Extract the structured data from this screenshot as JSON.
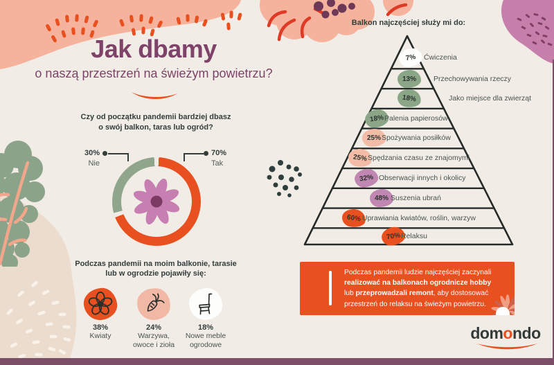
{
  "colors": {
    "bg": "#f1ece6",
    "orange": "#e8501f",
    "green": "#90a68c",
    "salmon": "#f5b29c",
    "mauve": "#c77fb2",
    "plum": "#7d4368",
    "dark": "#333e3b",
    "footer": "#7d4e68"
  },
  "header": {
    "title": "Jak dbamy",
    "subtitle": "o naszą przestrzeń na świeżym powietrzu?"
  },
  "donut_section": {
    "question_line1": "Czy od początku pandemii bardziej dbasz",
    "question_line2": "o swój balkon, taras lub ogród?",
    "left_value": "30%",
    "left_label": "Nie",
    "right_value": "70%",
    "right_label": "Tak"
  },
  "pyramid_section": {
    "heading": "Balkon najczęściej służy mi do:"
  },
  "items_section": {
    "heading_line1": "Podczas pandemii na moim balkonie, tarasie",
    "heading_line2": "lub w ogrodzie pojawiły się:",
    "items": [
      {
        "value": "38%",
        "label_line1": "Kwiaty",
        "label_line2": "",
        "icon": "flower-icon"
      },
      {
        "value": "24%",
        "label_line1": "Warzywa,",
        "label_line2": "owoce i zioła",
        "icon": "carrot-icon"
      },
      {
        "value": "18%",
        "label_line1": "Nowe meble",
        "label_line2": "ogrodowe",
        "icon": "chair-icon"
      }
    ]
  },
  "callout": {
    "lines": [
      [
        {
          "t": "Podczas pandemii ludzie najczęściej zaczynali",
          "b": false
        }
      ],
      [
        {
          "t": "realizować na balkonach ogrodnicze hobby",
          "b": true
        }
      ],
      [
        {
          "t": "lub ",
          "b": false
        },
        {
          "t": "przeprowadzali remont",
          "b": true
        },
        {
          "t": ", aby dostosować",
          "b": false
        }
      ],
      [
        {
          "t": "przestrzeń do relaksu na świeżym powietrzu.",
          "b": false
        }
      ]
    ]
  },
  "logo": {
    "prefix": "dom",
    "accent": "o",
    "suffix": "ndo"
  },
  "chart_data": [
    {
      "id": "pandemic-care-donut",
      "type": "pie",
      "title": "Czy od początku pandemii bardziej dbasz o swój balkon, taras lub ogród?",
      "labels": [
        "Tak",
        "Nie"
      ],
      "values": [
        70,
        30
      ],
      "colors": [
        "#e8501f",
        "#90a68c"
      ],
      "hole": true,
      "legend_position": "sides"
    },
    {
      "id": "balcony-uses-pyramid",
      "type": "bar",
      "title": "Balkon najczęściej służy mi do:",
      "categories": [
        "Ćwiczenia",
        "Przechowywania rzeczy",
        "Jako miejsce dla zwierząt",
        "Palenia papierosów",
        "Spożywania posiłków",
        "Spędzania czasu ze znajomymi",
        "Obserwacji innych i okolicy",
        "Suszenia ubrań",
        "Uprawiania kwiatów, roślin, warzyw",
        "Relaksu"
      ],
      "values": [
        7,
        13,
        18,
        18,
        25,
        25,
        32,
        48,
        60,
        70
      ],
      "layout_hint": "pyramid, smallest value at apex, labels of top three rows outside",
      "blob_colors": [
        "#fdfdfb",
        "#8aa687",
        "#8aa687",
        "#8aa687",
        "#f2bca6",
        "#f2bca6",
        "#bf87b1",
        "#bf87b1",
        "#e8501f",
        "#e8501f"
      ]
    },
    {
      "id": "new-on-balcony",
      "type": "bar",
      "title": "Podczas pandemii na moim balkonie, tarasie lub w ogrodzie pojawiły się:",
      "categories": [
        "Kwiaty",
        "Warzywa, owoce i zioła",
        "Nowe meble ogrodowe"
      ],
      "values": [
        38,
        24,
        18
      ]
    }
  ]
}
